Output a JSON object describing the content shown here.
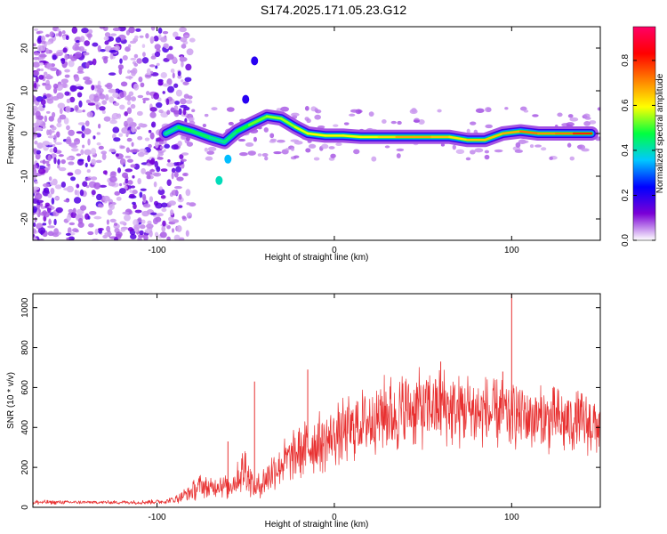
{
  "title": "S174.2025.171.05.23.G12",
  "chart_data": [
    {
      "type": "heatmap",
      "xlabel": "Height of straight line (km)",
      "ylabel": "Frequency (Hz)",
      "xlim": [
        -170,
        150
      ],
      "ylim": [
        -25,
        25
      ],
      "xticks": [
        -100,
        0,
        100
      ],
      "yticks": [
        -20,
        -10,
        0,
        10,
        20
      ],
      "colorbar": {
        "label": "Normalized spectral amplitude",
        "range": [
          0,
          0.95
        ],
        "ticks": [
          0.0,
          0.2,
          0.4,
          0.6,
          0.8
        ],
        "tick_labels": [
          "0.0",
          "0.2",
          "0.4",
          "0.6",
          "0.8"
        ],
        "colormap": [
          "#ffffff",
          "#7a00d6",
          "#0000ff",
          "#00c8ff",
          "#00ff40",
          "#ffff00",
          "#ff8000",
          "#ff0000",
          "#ff0066"
        ]
      },
      "ridge": [
        {
          "x": -95,
          "f": 0.0,
          "a": 0.35
        },
        {
          "x": -88,
          "f": 1.5,
          "a": 0.45
        },
        {
          "x": -80,
          "f": 0.5,
          "a": 0.5
        },
        {
          "x": -70,
          "f": -1.0,
          "a": 0.4
        },
        {
          "x": -62,
          "f": -2.0,
          "a": 0.4
        },
        {
          "x": -55,
          "f": 0.5,
          "a": 0.45
        },
        {
          "x": -48,
          "f": 2.0,
          "a": 0.5
        },
        {
          "x": -38,
          "f": 4.0,
          "a": 0.55
        },
        {
          "x": -30,
          "f": 3.5,
          "a": 0.55
        },
        {
          "x": -22,
          "f": 1.5,
          "a": 0.55
        },
        {
          "x": -15,
          "f": 0.0,
          "a": 0.6
        },
        {
          "x": -5,
          "f": -0.5,
          "a": 0.6
        },
        {
          "x": 5,
          "f": -0.5,
          "a": 0.6
        },
        {
          "x": 15,
          "f": -0.8,
          "a": 0.6
        },
        {
          "x": 25,
          "f": -0.8,
          "a": 0.6
        },
        {
          "x": 35,
          "f": -0.8,
          "a": 0.65
        },
        {
          "x": 45,
          "f": -0.8,
          "a": 0.7
        },
        {
          "x": 55,
          "f": -0.8,
          "a": 0.65
        },
        {
          "x": 65,
          "f": -0.8,
          "a": 0.65
        },
        {
          "x": 75,
          "f": -1.5,
          "a": 0.6
        },
        {
          "x": 85,
          "f": -1.5,
          "a": 0.7
        },
        {
          "x": 95,
          "f": 0.0,
          "a": 0.6
        },
        {
          "x": 105,
          "f": 0.5,
          "a": 0.75
        },
        {
          "x": 115,
          "f": 0.0,
          "a": 0.7
        },
        {
          "x": 125,
          "f": 0.0,
          "a": 0.7
        },
        {
          "x": 135,
          "f": 0.0,
          "a": 0.75
        },
        {
          "x": 145,
          "f": 0.0,
          "a": 0.85
        }
      ],
      "spurs": [
        {
          "x": -65,
          "f": -11.0,
          "a": 0.4
        },
        {
          "x": -60,
          "f": -6.0,
          "a": 0.35
        },
        {
          "x": -45,
          "f": 17.0,
          "a": 0.2
        },
        {
          "x": -50,
          "f": 8.0,
          "a": 0.2
        }
      ]
    },
    {
      "type": "line",
      "xlabel": "Height of straight line (km)",
      "ylabel": "SNR (10 * v/v)",
      "xlim": [
        -170,
        150
      ],
      "ylim": [
        0,
        1070
      ],
      "xticks": [
        -100,
        0,
        100
      ],
      "yticks": [
        0,
        200,
        400,
        600,
        800,
        1000
      ],
      "color": "#e83030",
      "series": [
        {
          "x": [
            -170,
            -150,
            -130,
            -110,
            -95,
            -90,
            -85,
            -80,
            -75,
            -70,
            -65,
            -60,
            -55,
            -50,
            -45,
            -40,
            -35,
            -30,
            -25,
            -20,
            -15,
            -10,
            -5,
            0,
            5,
            10,
            15,
            20,
            25,
            30,
            35,
            40,
            45,
            50,
            55,
            60,
            65,
            70,
            75,
            80,
            85,
            90,
            95,
            100,
            105,
            110,
            115,
            120,
            125,
            130,
            135,
            140,
            145,
            150
          ],
          "values": [
            25,
            25,
            25,
            25,
            30,
            40,
            60,
            80,
            110,
            90,
            120,
            100,
            140,
            200,
            90,
            130,
            180,
            220,
            250,
            280,
            300,
            320,
            330,
            360,
            380,
            400,
            420,
            440,
            460,
            480,
            460,
            480,
            500,
            490,
            500,
            520,
            490,
            480,
            500,
            470,
            480,
            460,
            470,
            460,
            470,
            450,
            440,
            430,
            440,
            420,
            430,
            420,
            410,
            420
          ],
          "amp": [
            15,
            10,
            10,
            12,
            15,
            25,
            40,
            60,
            70,
            60,
            80,
            70,
            90,
            150,
            60,
            90,
            120,
            130,
            140,
            160,
            170,
            180,
            180,
            180,
            190,
            200,
            200,
            210,
            220,
            220,
            220,
            230,
            230,
            230,
            230,
            230,
            220,
            220,
            220,
            220,
            210,
            210,
            210,
            210,
            200,
            200,
            200,
            190,
            190,
            190,
            180,
            180,
            180,
            180
          ]
        }
      ],
      "peaks": [
        {
          "x": -60,
          "y": 330
        },
        {
          "x": -45,
          "y": 630
        },
        {
          "x": -15,
          "y": 690
        },
        {
          "x": 60,
          "y": 730
        },
        {
          "x": 95,
          "y": 680
        },
        {
          "x": 100,
          "y": 1070
        }
      ]
    }
  ]
}
